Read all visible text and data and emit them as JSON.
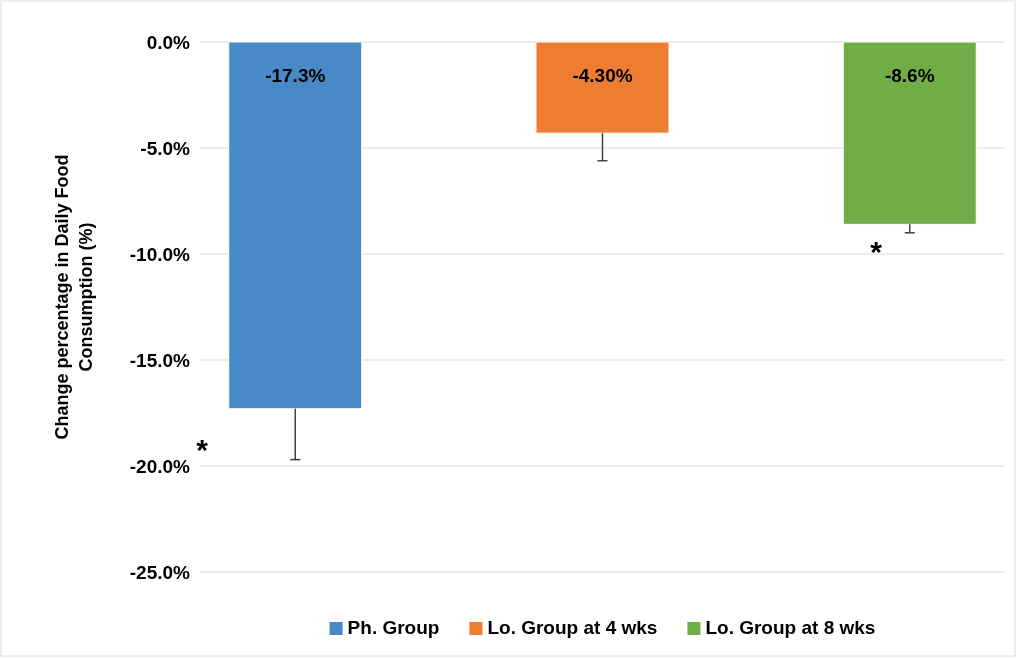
{
  "chart_data": {
    "type": "bar",
    "ylabel": "Change percentage in Daily Food Consumption  (%)",
    "categories": [
      null
    ],
    "series": [
      {
        "name": "Ph. Group",
        "color": "#4a89c8",
        "values": [
          -17.3
        ],
        "value_labels": [
          "-17.3%"
        ],
        "errors": [
          [
            -19.7,
            -17.3
          ]
        ]
      },
      {
        "name": "Lo. Group at 4 wks",
        "color": "#ed7d31",
        "values": [
          -4.3
        ],
        "value_labels": [
          "-4.30%"
        ],
        "errors": [
          [
            -5.6,
            -4.3
          ]
        ]
      },
      {
        "name": "Lo. Group at 8 wks",
        "color": "#70ad47",
        "values": [
          -8.6
        ],
        "value_labels": [
          "-8.6%"
        ],
        "errors": [
          [
            -9.0,
            -8.6
          ]
        ]
      }
    ],
    "ylim": [
      -25,
      0
    ],
    "yticks": [
      {
        "value": 0,
        "label": "0.0%"
      },
      {
        "value": -5,
        "label": "-5.0%"
      },
      {
        "value": -10,
        "label": "-10.0%"
      },
      {
        "value": -15,
        "label": "-15.0%"
      },
      {
        "value": -20,
        "label": "-20.0%"
      },
      {
        "value": -25,
        "label": "-25.0%"
      }
    ],
    "grid": true,
    "legend": "bottom",
    "annotations": [
      "*",
      "*"
    ]
  }
}
